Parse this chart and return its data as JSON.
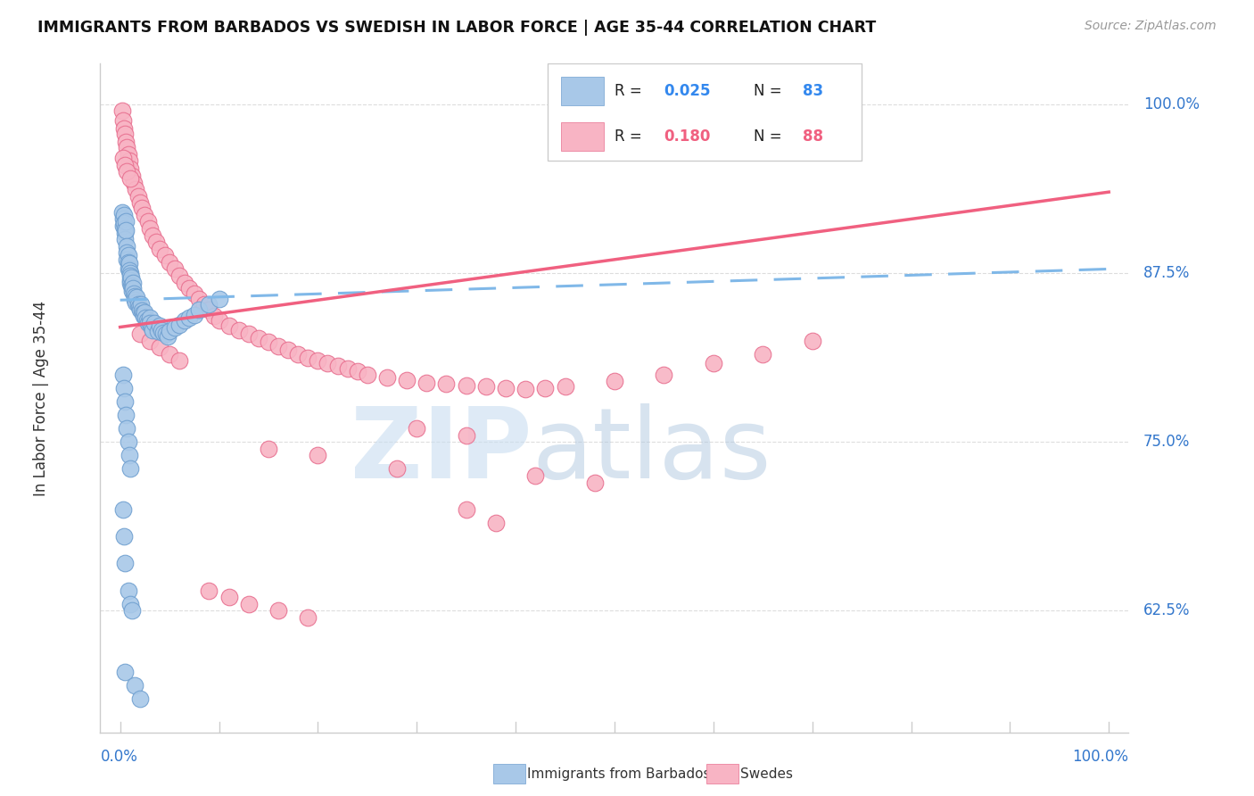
{
  "title": "IMMIGRANTS FROM BARBADOS VS SWEDISH IN LABOR FORCE | AGE 35-44 CORRELATION CHART",
  "source": "Source: ZipAtlas.com",
  "ylabel": "In Labor Force | Age 35-44",
  "ytick_values": [
    0.625,
    0.75,
    0.875,
    1.0
  ],
  "ytick_labels": [
    "62.5%",
    "75.0%",
    "87.5%",
    "100.0%"
  ],
  "xlim": [
    -0.02,
    1.02
  ],
  "ylim": [
    0.535,
    1.03
  ],
  "legend_label_blue": "Immigrants from Barbados",
  "legend_label_pink": "Swedes",
  "blue_scatter_color": "#a8c8e8",
  "blue_scatter_edge": "#70a0d0",
  "pink_scatter_color": "#f8b4c4",
  "pink_scatter_edge": "#e87090",
  "blue_line_color": "#80b8e8",
  "pink_line_color": "#f06080",
  "blue_trend_y0": 0.855,
  "blue_trend_y1": 0.878,
  "pink_trend_y0": 0.835,
  "pink_trend_y1": 0.935,
  "grid_color": "#dddddd",
  "axis_color": "#cccccc",
  "watermark_zip_color": "#c8ddf0",
  "watermark_atlas_color": "#b0c8e0"
}
